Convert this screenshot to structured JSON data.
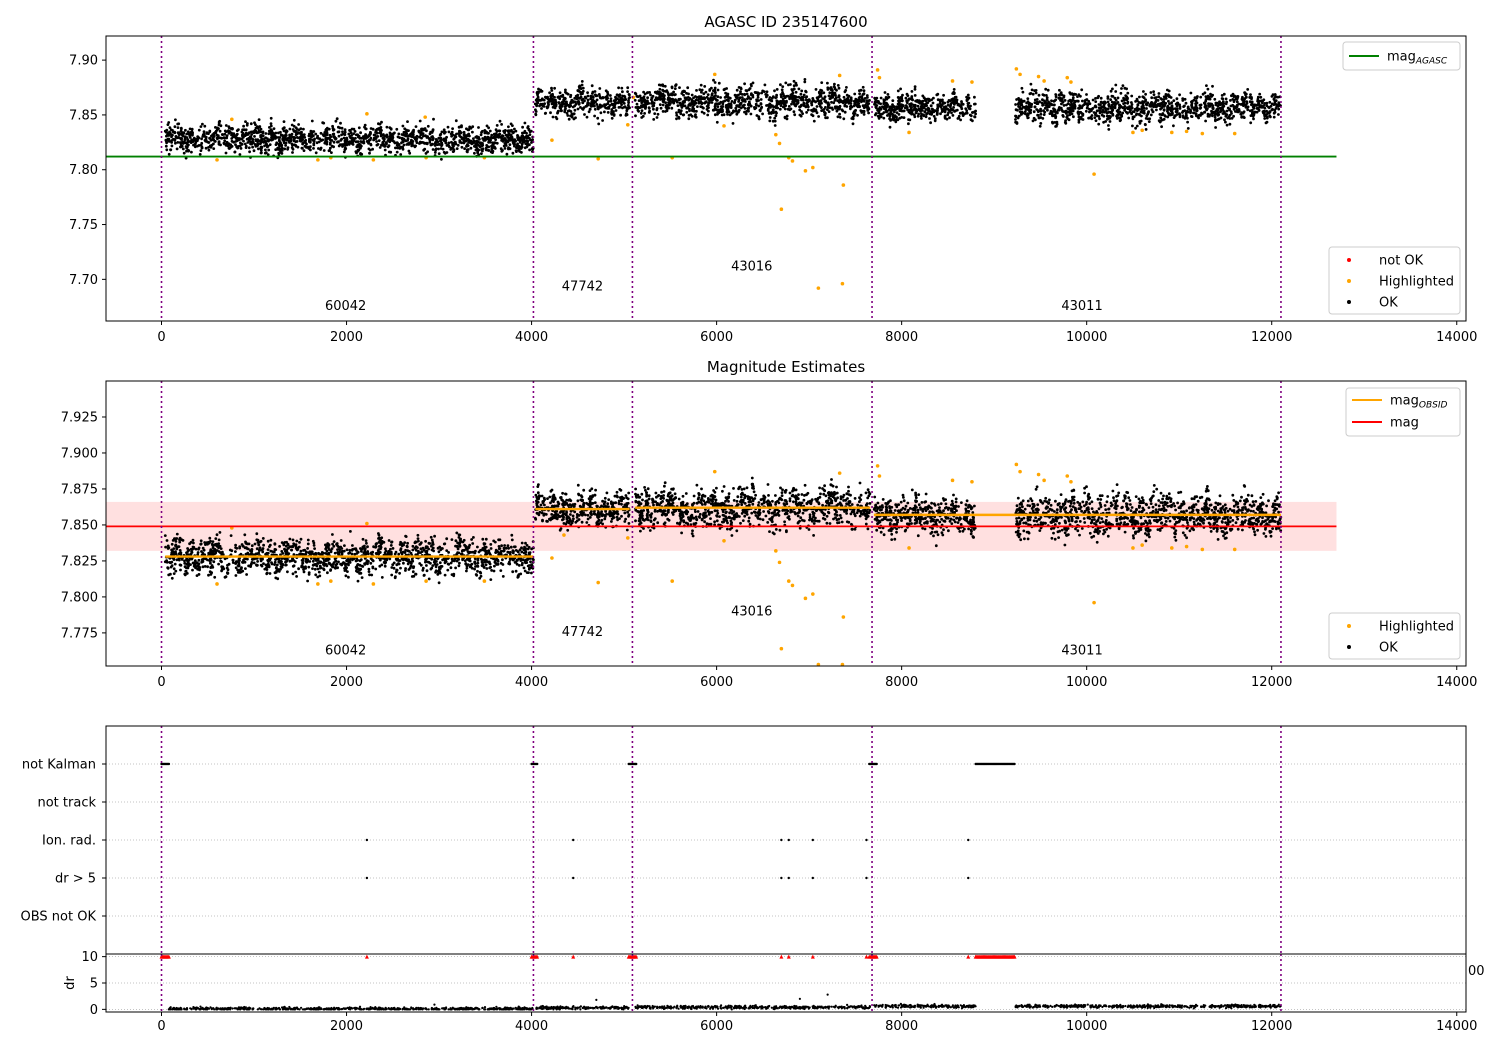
{
  "chart_data": [
    {
      "type": "scatter",
      "title": "AGASC ID 235147600",
      "xlim": [
        -600,
        14100
      ],
      "ylim": [
        7.662,
        7.922
      ],
      "x_ticks": [
        0,
        2000,
        4000,
        6000,
        8000,
        10000,
        12000,
        14000
      ],
      "x_tick_labels": [
        "0",
        "2000",
        "4000",
        "6000",
        "8000",
        "10000",
        "12000",
        "14000"
      ],
      "y_ticks": [
        7.7,
        7.75,
        7.8,
        7.85,
        7.9
      ],
      "y_tick_labels": [
        "7.70",
        "7.75",
        "7.80",
        "7.85",
        "7.90"
      ],
      "grid": false,
      "obs_boundaries": [
        0,
        4020,
        5090,
        7680,
        12100
      ],
      "obs_labels": [
        {
          "text": "60042",
          "x": 1990,
          "y": 7.672
        },
        {
          "text": "47742",
          "x": 4550,
          "y": 7.69
        },
        {
          "text": "43016",
          "x": 6380,
          "y": 7.708
        },
        {
          "text": "43011",
          "x": 9950,
          "y": 7.672
        }
      ],
      "mag_agasc": {
        "value": 7.812,
        "x_range": [
          -600,
          12700
        ]
      },
      "segments": [
        {
          "x_range": [
            40,
            4020
          ],
          "mean": 7.828,
          "spread": 0.009
        },
        {
          "x_range": [
            4040,
            5060
          ],
          "mean": 7.861,
          "spread": 0.009
        },
        {
          "x_range": [
            5120,
            7660
          ],
          "mean": 7.862,
          "spread": 0.01
        },
        {
          "x_range": [
            7700,
            8800
          ],
          "mean": 7.857,
          "spread": 0.009
        },
        {
          "x_range": [
            9230,
            12100
          ],
          "mean": 7.857,
          "spread": 0.01
        }
      ],
      "highlighted_points": [
        {
          "x": 600,
          "y": 7.809
        },
        {
          "x": 760,
          "y": 7.846
        },
        {
          "x": 1690,
          "y": 7.809
        },
        {
          "x": 1830,
          "y": 7.811
        },
        {
          "x": 2220,
          "y": 7.851
        },
        {
          "x": 2290,
          "y": 7.809
        },
        {
          "x": 2850,
          "y": 7.848
        },
        {
          "x": 2860,
          "y": 7.811
        },
        {
          "x": 3490,
          "y": 7.811
        },
        {
          "x": 4220,
          "y": 7.827
        },
        {
          "x": 4720,
          "y": 7.81
        },
        {
          "x": 5040,
          "y": 7.841
        },
        {
          "x": 5100,
          "y": 7.866
        },
        {
          "x": 5520,
          "y": 7.811
        },
        {
          "x": 5980,
          "y": 7.887
        },
        {
          "x": 6080,
          "y": 7.84
        },
        {
          "x": 6640,
          "y": 7.832
        },
        {
          "x": 6680,
          "y": 7.824
        },
        {
          "x": 6700,
          "y": 7.764
        },
        {
          "x": 6780,
          "y": 7.811
        },
        {
          "x": 6820,
          "y": 7.808
        },
        {
          "x": 6960,
          "y": 7.799
        },
        {
          "x": 7040,
          "y": 7.802
        },
        {
          "x": 7100,
          "y": 7.692
        },
        {
          "x": 7330,
          "y": 7.886
        },
        {
          "x": 7360,
          "y": 7.696
        },
        {
          "x": 7370,
          "y": 7.786
        },
        {
          "x": 7740,
          "y": 7.891
        },
        {
          "x": 7760,
          "y": 7.884
        },
        {
          "x": 8080,
          "y": 7.834
        },
        {
          "x": 8550,
          "y": 7.881
        },
        {
          "x": 8760,
          "y": 7.88
        },
        {
          "x": 9240,
          "y": 7.892
        },
        {
          "x": 9280,
          "y": 7.887
        },
        {
          "x": 9480,
          "y": 7.885
        },
        {
          "x": 9540,
          "y": 7.881
        },
        {
          "x": 9790,
          "y": 7.884
        },
        {
          "x": 9830,
          "y": 7.88
        },
        {
          "x": 10080,
          "y": 7.796
        },
        {
          "x": 10500,
          "y": 7.834
        },
        {
          "x": 10600,
          "y": 7.836
        },
        {
          "x": 10920,
          "y": 7.834
        },
        {
          "x": 11080,
          "y": 7.835
        },
        {
          "x": 11250,
          "y": 7.833
        },
        {
          "x": 11600,
          "y": 7.833
        }
      ],
      "legends": [
        {
          "position": "upper right",
          "entries": [
            {
              "label": "mag",
              "subscript": "AGASC",
              "color": "#008000",
              "marker": "line"
            }
          ]
        },
        {
          "position": "lower right",
          "entries": [
            {
              "label": "not OK",
              "color": "#ff0000",
              "marker": "dot"
            },
            {
              "label": "Highlighted",
              "color": "#ffa500",
              "marker": "dot"
            },
            {
              "label": "OK",
              "color": "#000000",
              "marker": "dot"
            }
          ]
        }
      ]
    },
    {
      "type": "scatter",
      "title": "Magnitude Estimates",
      "xlim": [
        -600,
        14100
      ],
      "ylim": [
        7.752,
        7.95
      ],
      "x_ticks": [
        0,
        2000,
        4000,
        6000,
        8000,
        10000,
        12000,
        14000
      ],
      "x_tick_labels": [
        "0",
        "2000",
        "4000",
        "6000",
        "8000",
        "10000",
        "12000",
        "14000"
      ],
      "y_ticks": [
        7.775,
        7.8,
        7.825,
        7.85,
        7.875,
        7.9,
        7.925
      ],
      "y_tick_labels": [
        "7.775",
        "7.800",
        "7.825",
        "7.850",
        "7.875",
        "7.900",
        "7.925"
      ],
      "grid": false,
      "obs_boundaries": [
        0,
        4020,
        5090,
        7680,
        12100
      ],
      "obs_labels": [
        {
          "text": "60042",
          "x": 1990,
          "y": 7.76
        },
        {
          "text": "47742",
          "x": 4550,
          "y": 7.773
        },
        {
          "text": "43016",
          "x": 6380,
          "y": 7.787
        },
        {
          "text": "43011",
          "x": 9950,
          "y": 7.76
        }
      ],
      "mag": {
        "value": 7.849,
        "band": [
          7.832,
          7.866
        ],
        "x_range": [
          -600,
          12700
        ]
      },
      "mag_obsid": [
        {
          "x_range": [
            40,
            4020
          ],
          "value": 7.828
        },
        {
          "x_range": [
            4040,
            5060
          ],
          "value": 7.861
        },
        {
          "x_range": [
            5120,
            7660
          ],
          "value": 7.862
        },
        {
          "x_range": [
            7700,
            12100
          ],
          "value": 7.857
        }
      ],
      "segments": [
        {
          "x_range": [
            40,
            4020
          ],
          "mean": 7.828,
          "spread": 0.009
        },
        {
          "x_range": [
            4040,
            5060
          ],
          "mean": 7.861,
          "spread": 0.009
        },
        {
          "x_range": [
            5120,
            7660
          ],
          "mean": 7.862,
          "spread": 0.01
        },
        {
          "x_range": [
            7700,
            8800
          ],
          "mean": 7.857,
          "spread": 0.009
        },
        {
          "x_range": [
            9230,
            12100
          ],
          "mean": 7.857,
          "spread": 0.01
        }
      ],
      "highlighted_points": [
        {
          "x": 600,
          "y": 7.809
        },
        {
          "x": 760,
          "y": 7.848
        },
        {
          "x": 1690,
          "y": 7.809
        },
        {
          "x": 1830,
          "y": 7.811
        },
        {
          "x": 2220,
          "y": 7.851
        },
        {
          "x": 2290,
          "y": 7.809
        },
        {
          "x": 2860,
          "y": 7.811
        },
        {
          "x": 3490,
          "y": 7.811
        },
        {
          "x": 4220,
          "y": 7.827
        },
        {
          "x": 4350,
          "y": 7.843
        },
        {
          "x": 4720,
          "y": 7.81
        },
        {
          "x": 5040,
          "y": 7.841
        },
        {
          "x": 5520,
          "y": 7.811
        },
        {
          "x": 5980,
          "y": 7.887
        },
        {
          "x": 6080,
          "y": 7.839
        },
        {
          "x": 6640,
          "y": 7.832
        },
        {
          "x": 6680,
          "y": 7.824
        },
        {
          "x": 6700,
          "y": 7.764
        },
        {
          "x": 6780,
          "y": 7.811
        },
        {
          "x": 6820,
          "y": 7.808
        },
        {
          "x": 6960,
          "y": 7.799
        },
        {
          "x": 7040,
          "y": 7.802
        },
        {
          "x": 7100,
          "y": 7.753
        },
        {
          "x": 7330,
          "y": 7.886
        },
        {
          "x": 7360,
          "y": 7.753
        },
        {
          "x": 7370,
          "y": 7.786
        },
        {
          "x": 7740,
          "y": 7.891
        },
        {
          "x": 7760,
          "y": 7.884
        },
        {
          "x": 8080,
          "y": 7.834
        },
        {
          "x": 8550,
          "y": 7.881
        },
        {
          "x": 8760,
          "y": 7.88
        },
        {
          "x": 9240,
          "y": 7.892
        },
        {
          "x": 9280,
          "y": 7.887
        },
        {
          "x": 9480,
          "y": 7.885
        },
        {
          "x": 9540,
          "y": 7.881
        },
        {
          "x": 9790,
          "y": 7.884
        },
        {
          "x": 9830,
          "y": 7.88
        },
        {
          "x": 10080,
          "y": 7.796
        },
        {
          "x": 10500,
          "y": 7.834
        },
        {
          "x": 10600,
          "y": 7.836
        },
        {
          "x": 10920,
          "y": 7.834
        },
        {
          "x": 11080,
          "y": 7.835
        },
        {
          "x": 11250,
          "y": 7.833
        },
        {
          "x": 11600,
          "y": 7.833
        }
      ],
      "legends": [
        {
          "position": "upper right",
          "entries": [
            {
              "label": "mag",
              "subscript": "OBSID",
              "color": "#ffa500",
              "marker": "line"
            },
            {
              "label": "mag",
              "subscript": "",
              "color": "#ff0000",
              "marker": "line"
            }
          ]
        },
        {
          "position": "lower right",
          "entries": [
            {
              "label": "Highlighted",
              "color": "#ffa500",
              "marker": "dot"
            },
            {
              "label": "OK",
              "color": "#000000",
              "marker": "dot"
            }
          ]
        }
      ]
    },
    {
      "type": "scatter",
      "title": "",
      "xlim": [
        -600,
        14100
      ],
      "categories": [
        "not Kalman",
        "not track",
        "Ion. rad.",
        "dr > 5",
        "OBS not OK"
      ],
      "grid": "horizontal dotted",
      "obs_boundaries": [
        0,
        4020,
        5090,
        7680,
        12100
      ],
      "flags": {
        "not Kalman": {
          "ranges": [
            [
              0,
              80
            ],
            [
              4000,
              4060
            ],
            [
              5050,
              5130
            ],
            [
              7650,
              7730
            ],
            [
              8800,
              9220
            ]
          ],
          "points": []
        },
        "not track": {
          "ranges": [],
          "points": []
        },
        "Ion. rad.": {
          "ranges": [],
          "points": [
            2220,
            4450,
            6700,
            6780,
            7040,
            7620,
            8720
          ]
        },
        "dr > 5": {
          "ranges": [],
          "points": [
            2220,
            4450,
            6700,
            6780,
            7040,
            7620,
            8720
          ]
        },
        "OBS not OK": {
          "ranges": [],
          "points": []
        }
      }
    },
    {
      "type": "scatter",
      "title": "",
      "xlim": [
        -600,
        14100
      ],
      "ylim": [
        -0.5,
        10.5
      ],
      "ylabel": "dr",
      "x_ticks": [
        0,
        2000,
        4000,
        6000,
        8000,
        10000,
        12000,
        14000
      ],
      "x_tick_labels": [
        "0",
        "2000",
        "4000",
        "6000",
        "8000",
        "10000",
        "12000",
        "14000"
      ],
      "y_ticks": [
        0,
        5,
        10
      ],
      "y_tick_labels": [
        "0",
        "5",
        "10"
      ],
      "grid": "horizontal dotted",
      "clipped_text": "00",
      "dr_segments": [
        {
          "x_range": [
            40,
            4020
          ],
          "level": 0.1
        },
        {
          "x_range": [
            4040,
            5060
          ],
          "level": 0.3
        },
        {
          "x_range": [
            5120,
            7660
          ],
          "level": 0.4
        },
        {
          "x_range": [
            7700,
            8800
          ],
          "level": 0.6
        },
        {
          "x_range": [
            9230,
            12100
          ],
          "level": 0.6
        }
      ],
      "dr_outliers": [
        {
          "x": 2950,
          "y": 0.9
        },
        {
          "x": 4700,
          "y": 1.8
        },
        {
          "x": 6900,
          "y": 2.0
        },
        {
          "x": 7200,
          "y": 2.8
        }
      ],
      "clipped_red": {
        "ranges": [
          [
            0,
            80
          ],
          [
            4000,
            4060
          ],
          [
            5050,
            5130
          ],
          [
            7650,
            7730
          ],
          [
            8800,
            9220
          ]
        ],
        "points": [
          2220,
          4450,
          6700,
          6780,
          7040,
          7620,
          8720
        ],
        "value": 10
      }
    }
  ]
}
